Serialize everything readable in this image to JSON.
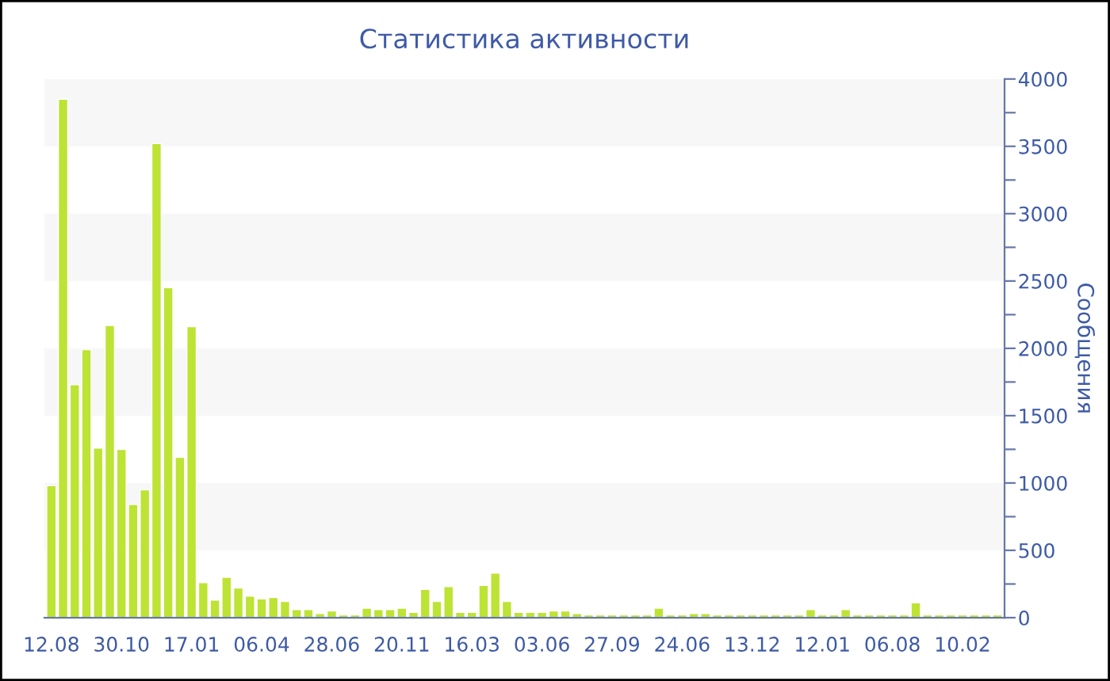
{
  "chart_data": {
    "type": "bar",
    "title": "Статистика активности",
    "ylabel": "Сообщения",
    "categories": [
      "12.08",
      null,
      null,
      null,
      null,
      null,
      "30.10",
      null,
      null,
      null,
      null,
      null,
      "17.01",
      null,
      null,
      null,
      null,
      null,
      "06.04",
      null,
      null,
      null,
      null,
      null,
      "28.06",
      null,
      null,
      null,
      null,
      null,
      "20.11",
      null,
      null,
      null,
      null,
      null,
      "16.03",
      null,
      null,
      null,
      null,
      null,
      "03.06",
      null,
      null,
      null,
      null,
      null,
      "27.09",
      null,
      null,
      null,
      null,
      null,
      "24.06",
      null,
      null,
      null,
      null,
      null,
      "13.12",
      null,
      null,
      null,
      null,
      null,
      "12.01",
      null,
      null,
      null,
      null,
      null,
      "06.08",
      null,
      null,
      null,
      null,
      null,
      "10.02",
      null,
      null,
      null
    ],
    "series": [
      {
        "color": "#bde334",
        "values": [
          980,
          3850,
          1730,
          1990,
          1260,
          2170,
          1250,
          840,
          950,
          3520,
          2450,
          1190,
          2160,
          260,
          130,
          300,
          220,
          160,
          140,
          150,
          120,
          60,
          60,
          30,
          50,
          20,
          20,
          70,
          60,
          60,
          70,
          40,
          210,
          120,
          230,
          40,
          40,
          240,
          330,
          120,
          40,
          40,
          40,
          50,
          50,
          30,
          20,
          20,
          20,
          20,
          20,
          20,
          70,
          20,
          20,
          30,
          30,
          20,
          20,
          20,
          20,
          20,
          20,
          20,
          20,
          60,
          20,
          20,
          60,
          20,
          20,
          20,
          20,
          20,
          110,
          20,
          20,
          20,
          20,
          20,
          20,
          20
        ]
      }
    ],
    "ylim": [
      0,
      4000
    ],
    "yticks": [
      0,
      {
        "value": 250,
        "label": null
      },
      500,
      {
        "value": 750,
        "label": null
      },
      1000,
      {
        "value": 1250,
        "label": null
      },
      1500,
      {
        "value": 1750,
        "label": null
      },
      2000,
      {
        "value": 2250,
        "label": null
      },
      2500,
      {
        "value": 2750,
        "label": null
      },
      3000,
      {
        "value": 3250,
        "label": null
      },
      3500,
      {
        "value": 3750,
        "label": null
      },
      4000
    ],
    "bands": [
      {
        "axis": "y",
        "from": 500,
        "to": 1000,
        "color": "#f7f7f7"
      },
      {
        "axis": "y",
        "from": 1500,
        "to": 2000,
        "color": "#f7f7f7"
      },
      {
        "axis": "y",
        "from": 2500,
        "to": 3000,
        "color": "#f7f7f7"
      },
      {
        "axis": "y",
        "from": 3500,
        "to": 4000,
        "color": "#f7f7f7"
      }
    ],
    "grid": false,
    "legend": false
  }
}
